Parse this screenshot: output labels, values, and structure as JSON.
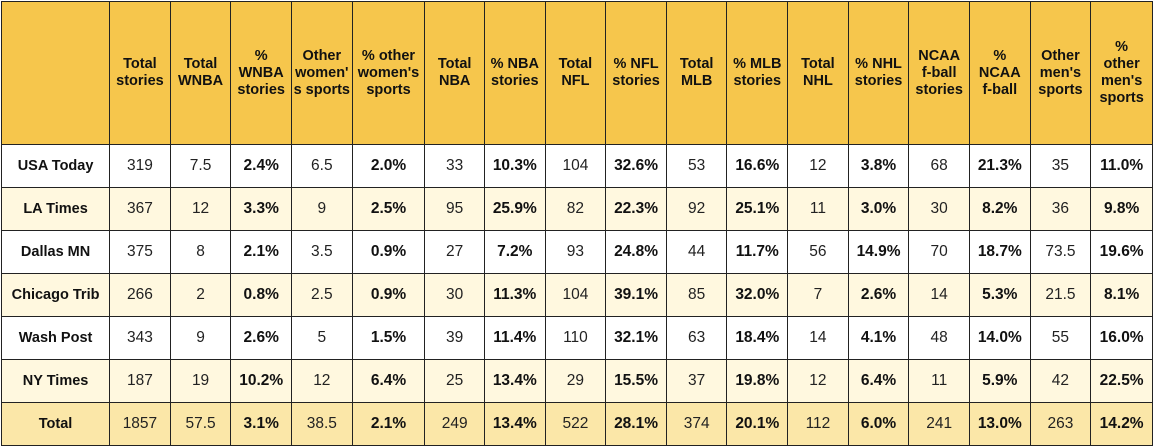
{
  "chart_data": {
    "type": "table",
    "columns": [
      "",
      "Total stories",
      "Total WNBA",
      "% WNBA stories",
      "Other women's sports",
      "% other women's sports",
      "Total NBA",
      "% NBA stories",
      "Total NFL",
      "% NFL stories",
      "Total MLB",
      "% MLB stories",
      "Total NHL",
      "% NHL stories",
      "NCAA f-ball stories",
      "% NCAA f-ball",
      "Other men's sports",
      "% other men's sports"
    ],
    "header_lines": [
      [],
      [
        "Total",
        "stories"
      ],
      [
        "Total",
        "WNBA"
      ],
      [
        "%",
        "WNBA",
        "stories"
      ],
      [
        "Other",
        "women'",
        "s sports"
      ],
      [
        "% other",
        "women's",
        "sports"
      ],
      [
        "Total",
        "NBA"
      ],
      [
        "% NBA",
        "stories"
      ],
      [
        "Total",
        "NFL"
      ],
      [
        "% NFL",
        "stories"
      ],
      [
        "Total",
        "MLB"
      ],
      [
        "% MLB",
        "stories"
      ],
      [
        "Total",
        "NHL"
      ],
      [
        "% NHL",
        "stories"
      ],
      [
        "NCAA",
        "f-ball",
        "stories"
      ],
      [
        "%",
        "NCAA",
        "f-ball"
      ],
      [
        "Other",
        "men's",
        "sports"
      ],
      [
        "%",
        "other",
        "men's",
        "sports"
      ]
    ],
    "rows": [
      {
        "name": "USA Today",
        "values": [
          "319",
          "7.5",
          "2.4%",
          "6.5",
          "2.0%",
          "33",
          "10.3%",
          "104",
          "32.6%",
          "53",
          "16.6%",
          "12",
          "3.8%",
          "68",
          "21.3%",
          "35",
          "11.0%"
        ]
      },
      {
        "name": "LA Times",
        "values": [
          "367",
          "12",
          "3.3%",
          "9",
          "2.5%",
          "95",
          "25.9%",
          "82",
          "22.3%",
          "92",
          "25.1%",
          "11",
          "3.0%",
          "30",
          "8.2%",
          "36",
          "9.8%"
        ]
      },
      {
        "name": "Dallas MN",
        "values": [
          "375",
          "8",
          "2.1%",
          "3.5",
          "0.9%",
          "27",
          "7.2%",
          "93",
          "24.8%",
          "44",
          "11.7%",
          "56",
          "14.9%",
          "70",
          "18.7%",
          "73.5",
          "19.6%"
        ]
      },
      {
        "name": "Chicago Trib",
        "values": [
          "266",
          "2",
          "0.8%",
          "2.5",
          "0.9%",
          "30",
          "11.3%",
          "104",
          "39.1%",
          "85",
          "32.0%",
          "7",
          "2.6%",
          "14",
          "5.3%",
          "21.5",
          "8.1%"
        ]
      },
      {
        "name": "Wash Post",
        "values": [
          "343",
          "9",
          "2.6%",
          "5",
          "1.5%",
          "39",
          "11.4%",
          "110",
          "32.1%",
          "63",
          "18.4%",
          "14",
          "4.1%",
          "48",
          "14.0%",
          "55",
          "16.0%"
        ]
      },
      {
        "name": "NY Times",
        "values": [
          "187",
          "19",
          "10.2%",
          "12",
          "6.4%",
          "25",
          "13.4%",
          "29",
          "15.5%",
          "37",
          "19.8%",
          "12",
          "6.4%",
          "11",
          "5.9%",
          "42",
          "22.5%"
        ]
      },
      {
        "name": "Total",
        "values": [
          "1857",
          "57.5",
          "3.1%",
          "38.5",
          "2.1%",
          "249",
          "13.4%",
          "522",
          "28.1%",
          "374",
          "20.1%",
          "112",
          "6.0%",
          "241",
          "13.0%",
          "263",
          "14.2%"
        ]
      }
    ],
    "colors": {
      "header": "#f6c64c",
      "row_white": "#ffffff",
      "row_cream": "#fff8df",
      "total_row": "#fbe7a8",
      "border": "#222222"
    }
  }
}
